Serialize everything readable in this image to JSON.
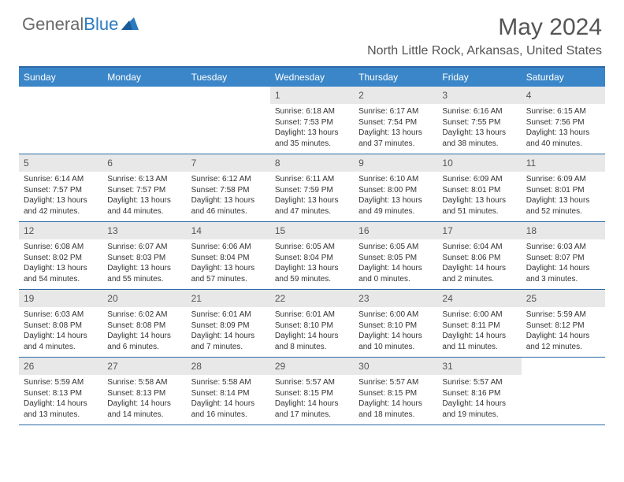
{
  "logo": {
    "word1": "General",
    "word2": "Blue"
  },
  "title": "May 2024",
  "location": "North Little Rock, Arkansas, United States",
  "colors": {
    "header_bar": "#3b86c8",
    "border": "#2b6aa8",
    "daynum_bg": "#e8e8e8",
    "logo_gray": "#6a6a6a",
    "logo_blue": "#2b7ac0",
    "text": "#333333",
    "title_gray": "#555555"
  },
  "day_names": [
    "Sunday",
    "Monday",
    "Tuesday",
    "Wednesday",
    "Thursday",
    "Friday",
    "Saturday"
  ],
  "weeks": [
    [
      {
        "blank": true
      },
      {
        "blank": true
      },
      {
        "blank": true
      },
      {
        "day": "1",
        "sunrise": "Sunrise: 6:18 AM",
        "sunset": "Sunset: 7:53 PM",
        "dl1": "Daylight: 13 hours",
        "dl2": "and 35 minutes."
      },
      {
        "day": "2",
        "sunrise": "Sunrise: 6:17 AM",
        "sunset": "Sunset: 7:54 PM",
        "dl1": "Daylight: 13 hours",
        "dl2": "and 37 minutes."
      },
      {
        "day": "3",
        "sunrise": "Sunrise: 6:16 AM",
        "sunset": "Sunset: 7:55 PM",
        "dl1": "Daylight: 13 hours",
        "dl2": "and 38 minutes."
      },
      {
        "day": "4",
        "sunrise": "Sunrise: 6:15 AM",
        "sunset": "Sunset: 7:56 PM",
        "dl1": "Daylight: 13 hours",
        "dl2": "and 40 minutes."
      }
    ],
    [
      {
        "day": "5",
        "sunrise": "Sunrise: 6:14 AM",
        "sunset": "Sunset: 7:57 PM",
        "dl1": "Daylight: 13 hours",
        "dl2": "and 42 minutes."
      },
      {
        "day": "6",
        "sunrise": "Sunrise: 6:13 AM",
        "sunset": "Sunset: 7:57 PM",
        "dl1": "Daylight: 13 hours",
        "dl2": "and 44 minutes."
      },
      {
        "day": "7",
        "sunrise": "Sunrise: 6:12 AM",
        "sunset": "Sunset: 7:58 PM",
        "dl1": "Daylight: 13 hours",
        "dl2": "and 46 minutes."
      },
      {
        "day": "8",
        "sunrise": "Sunrise: 6:11 AM",
        "sunset": "Sunset: 7:59 PM",
        "dl1": "Daylight: 13 hours",
        "dl2": "and 47 minutes."
      },
      {
        "day": "9",
        "sunrise": "Sunrise: 6:10 AM",
        "sunset": "Sunset: 8:00 PM",
        "dl1": "Daylight: 13 hours",
        "dl2": "and 49 minutes."
      },
      {
        "day": "10",
        "sunrise": "Sunrise: 6:09 AM",
        "sunset": "Sunset: 8:01 PM",
        "dl1": "Daylight: 13 hours",
        "dl2": "and 51 minutes."
      },
      {
        "day": "11",
        "sunrise": "Sunrise: 6:09 AM",
        "sunset": "Sunset: 8:01 PM",
        "dl1": "Daylight: 13 hours",
        "dl2": "and 52 minutes."
      }
    ],
    [
      {
        "day": "12",
        "sunrise": "Sunrise: 6:08 AM",
        "sunset": "Sunset: 8:02 PM",
        "dl1": "Daylight: 13 hours",
        "dl2": "and 54 minutes."
      },
      {
        "day": "13",
        "sunrise": "Sunrise: 6:07 AM",
        "sunset": "Sunset: 8:03 PM",
        "dl1": "Daylight: 13 hours",
        "dl2": "and 55 minutes."
      },
      {
        "day": "14",
        "sunrise": "Sunrise: 6:06 AM",
        "sunset": "Sunset: 8:04 PM",
        "dl1": "Daylight: 13 hours",
        "dl2": "and 57 minutes."
      },
      {
        "day": "15",
        "sunrise": "Sunrise: 6:05 AM",
        "sunset": "Sunset: 8:04 PM",
        "dl1": "Daylight: 13 hours",
        "dl2": "and 59 minutes."
      },
      {
        "day": "16",
        "sunrise": "Sunrise: 6:05 AM",
        "sunset": "Sunset: 8:05 PM",
        "dl1": "Daylight: 14 hours",
        "dl2": "and 0 minutes."
      },
      {
        "day": "17",
        "sunrise": "Sunrise: 6:04 AM",
        "sunset": "Sunset: 8:06 PM",
        "dl1": "Daylight: 14 hours",
        "dl2": "and 2 minutes."
      },
      {
        "day": "18",
        "sunrise": "Sunrise: 6:03 AM",
        "sunset": "Sunset: 8:07 PM",
        "dl1": "Daylight: 14 hours",
        "dl2": "and 3 minutes."
      }
    ],
    [
      {
        "day": "19",
        "sunrise": "Sunrise: 6:03 AM",
        "sunset": "Sunset: 8:08 PM",
        "dl1": "Daylight: 14 hours",
        "dl2": "and 4 minutes."
      },
      {
        "day": "20",
        "sunrise": "Sunrise: 6:02 AM",
        "sunset": "Sunset: 8:08 PM",
        "dl1": "Daylight: 14 hours",
        "dl2": "and 6 minutes."
      },
      {
        "day": "21",
        "sunrise": "Sunrise: 6:01 AM",
        "sunset": "Sunset: 8:09 PM",
        "dl1": "Daylight: 14 hours",
        "dl2": "and 7 minutes."
      },
      {
        "day": "22",
        "sunrise": "Sunrise: 6:01 AM",
        "sunset": "Sunset: 8:10 PM",
        "dl1": "Daylight: 14 hours",
        "dl2": "and 8 minutes."
      },
      {
        "day": "23",
        "sunrise": "Sunrise: 6:00 AM",
        "sunset": "Sunset: 8:10 PM",
        "dl1": "Daylight: 14 hours",
        "dl2": "and 10 minutes."
      },
      {
        "day": "24",
        "sunrise": "Sunrise: 6:00 AM",
        "sunset": "Sunset: 8:11 PM",
        "dl1": "Daylight: 14 hours",
        "dl2": "and 11 minutes."
      },
      {
        "day": "25",
        "sunrise": "Sunrise: 5:59 AM",
        "sunset": "Sunset: 8:12 PM",
        "dl1": "Daylight: 14 hours",
        "dl2": "and 12 minutes."
      }
    ],
    [
      {
        "day": "26",
        "sunrise": "Sunrise: 5:59 AM",
        "sunset": "Sunset: 8:13 PM",
        "dl1": "Daylight: 14 hours",
        "dl2": "and 13 minutes."
      },
      {
        "day": "27",
        "sunrise": "Sunrise: 5:58 AM",
        "sunset": "Sunset: 8:13 PM",
        "dl1": "Daylight: 14 hours",
        "dl2": "and 14 minutes."
      },
      {
        "day": "28",
        "sunrise": "Sunrise: 5:58 AM",
        "sunset": "Sunset: 8:14 PM",
        "dl1": "Daylight: 14 hours",
        "dl2": "and 16 minutes."
      },
      {
        "day": "29",
        "sunrise": "Sunrise: 5:57 AM",
        "sunset": "Sunset: 8:15 PM",
        "dl1": "Daylight: 14 hours",
        "dl2": "and 17 minutes."
      },
      {
        "day": "30",
        "sunrise": "Sunrise: 5:57 AM",
        "sunset": "Sunset: 8:15 PM",
        "dl1": "Daylight: 14 hours",
        "dl2": "and 18 minutes."
      },
      {
        "day": "31",
        "sunrise": "Sunrise: 5:57 AM",
        "sunset": "Sunset: 8:16 PM",
        "dl1": "Daylight: 14 hours",
        "dl2": "and 19 minutes."
      },
      {
        "blank": true
      }
    ]
  ]
}
